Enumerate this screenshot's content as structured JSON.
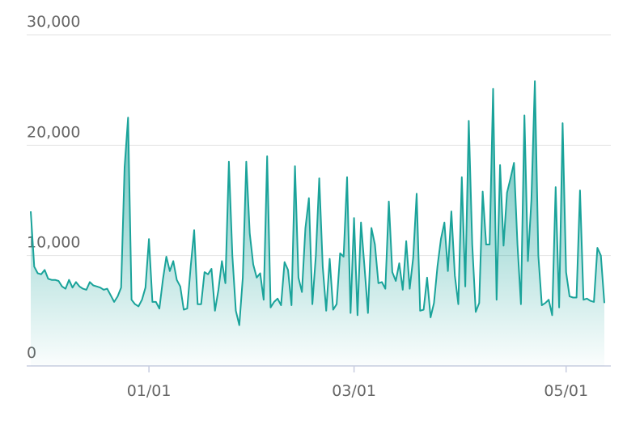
{
  "chart_data": {
    "type": "area",
    "x": [
      -34,
      -33,
      -32,
      -31,
      -30,
      -29,
      -28,
      -27,
      -26,
      -25,
      -24,
      -23,
      -22,
      -21,
      -20,
      -19,
      -18,
      -17,
      -16,
      -15,
      -14,
      -13,
      -12,
      -11,
      -10,
      -9,
      -8,
      -7,
      -6,
      -5,
      -4,
      -3,
      -2,
      -1,
      0,
      1,
      2,
      3,
      4,
      5,
      6,
      7,
      8,
      9,
      10,
      11,
      12,
      13,
      14,
      15,
      16,
      17,
      18,
      19,
      20,
      21,
      22,
      23,
      24,
      25,
      26,
      27,
      28,
      29,
      30,
      31,
      32,
      33,
      34,
      35,
      36,
      37,
      38,
      39,
      40,
      41,
      42,
      43,
      44,
      45,
      46,
      47,
      48,
      49,
      50,
      51,
      52,
      53,
      54,
      55,
      56,
      57,
      58,
      59,
      60,
      61,
      62,
      63,
      64,
      65,
      66,
      67,
      68,
      69,
      70,
      71,
      72,
      73,
      74,
      75,
      76,
      77,
      78,
      79,
      80,
      81,
      82,
      83,
      84,
      85,
      86,
      87,
      88,
      89,
      90,
      91,
      92,
      93,
      94,
      95,
      96,
      97,
      98,
      99,
      100,
      101,
      102,
      103,
      104,
      105,
      106,
      107,
      108,
      109,
      110,
      111,
      112,
      113,
      114,
      115,
      116,
      117,
      118,
      119,
      120,
      121,
      122,
      123,
      124,
      125,
      126,
      127,
      128,
      129,
      130,
      131
    ],
    "values": [
      14000,
      9000,
      8400,
      8300,
      8700,
      7900,
      7800,
      7800,
      7700,
      7200,
      7000,
      7800,
      7100,
      7600,
      7200,
      7000,
      6900,
      7600,
      7300,
      7200,
      7100,
      6900,
      7000,
      6400,
      5800,
      6300,
      7100,
      18000,
      22500,
      6000,
      5600,
      5400,
      6000,
      7100,
      11500,
      5800,
      5800,
      5200,
      7800,
      9900,
      8600,
      9500,
      7800,
      7200,
      5100,
      5200,
      9000,
      12300,
      5600,
      5600,
      8500,
      8300,
      8800,
      5000,
      6900,
      9500,
      7500,
      18500,
      10000,
      5000,
      3700,
      8000,
      18500,
      12000,
      9200,
      8000,
      8400,
      6000,
      19000,
      5300,
      5800,
      6100,
      5500,
      9400,
      8700,
      5500,
      18100,
      8000,
      6700,
      12500,
      15200,
      5600,
      10000,
      17000,
      9000,
      5000,
      9700,
      5100,
      5600,
      10200,
      9900,
      17100,
      4800,
      13400,
      4600,
      13000,
      9000,
      4800,
      12500,
      11000,
      7500,
      7600,
      7000,
      14900,
      8500,
      7700,
      9300,
      6900,
      11300,
      7000,
      9800,
      15600,
      5000,
      5100,
      8000,
      4400,
      5700,
      9000,
      11500,
      13000,
      8600,
      14000,
      8200,
      5600,
      17100,
      7200,
      22200,
      11000,
      4900,
      5700,
      15800,
      11000,
      11000,
      25100,
      6000,
      18200,
      10900,
      15700,
      17000,
      18400,
      11000,
      5600,
      22700,
      9500,
      15000,
      25800,
      10000,
      5500,
      5700,
      6000,
      4600,
      16200,
      5300,
      22000,
      8500,
      6300,
      6200,
      6200,
      15900,
      6000,
      6100,
      5900,
      5800,
      10700,
      10000,
      5700
    ],
    "color": "#1aa39a",
    "xlim": [
      -34,
      131
    ],
    "xticks": [
      {
        "value": 0,
        "label": "01/01"
      },
      {
        "value": 59,
        "label": "03/01"
      },
      {
        "value": 120,
        "label": "05/01"
      }
    ],
    "ylim": [
      0,
      30000
    ],
    "yticks": [
      0,
      {
        "value": 10000,
        "label": "10,000"
      },
      {
        "value": 20000,
        "label": "20,000"
      },
      {
        "value": 30000,
        "label": "30,000"
      }
    ],
    "grid": true
  }
}
